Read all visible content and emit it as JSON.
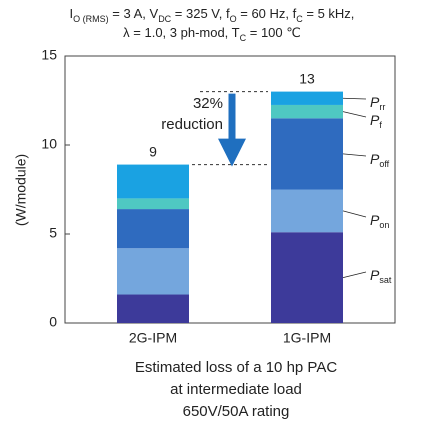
{
  "chart_data": {
    "type": "stacked_bar",
    "conditions": [
      [
        "I",
        "O (RMS)",
        " = 3 A, V",
        "DC",
        " = 325 V, f",
        "O",
        " = 60 Hz, f",
        "C",
        " = 5 kHz,"
      ],
      [
        "λ = 1.0, 3 ph-mod, T",
        "C",
        " = 100 ℃"
      ]
    ],
    "y_label": "(W/module)",
    "categories": [
      "2G-IPM",
      "1G-IPM"
    ],
    "series": [
      {
        "symbol": "P",
        "subscript": "sat",
        "color": "#3d3a9a",
        "values": [
          1.6,
          5.1
        ]
      },
      {
        "symbol": "P",
        "subscript": "on",
        "color": "#74a6dd",
        "values": [
          2.6,
          2.4
        ]
      },
      {
        "symbol": "P",
        "subscript": "off",
        "color": "#2f6bbf",
        "values": [
          2.2,
          4.0
        ]
      },
      {
        "symbol": "P",
        "subscript": "f",
        "color": "#4fc8c2",
        "values": [
          0.6,
          0.75
        ]
      },
      {
        "symbol": "P",
        "subscript": "rr",
        "color": "#1aa2e2",
        "values": [
          1.9,
          0.75
        ]
      }
    ],
    "totals": [
      8.9,
      13.0
    ],
    "total_labels": [
      "9",
      "13"
    ],
    "reduction_label": [
      "32%",
      "reduction"
    ],
    "ylim": [
      0,
      15
    ],
    "yticks": [
      0,
      5,
      10,
      15
    ],
    "caption": [
      "Estimated loss of a 10 hp PAC",
      "at intermediate load",
      "650V/50A rating"
    ]
  }
}
